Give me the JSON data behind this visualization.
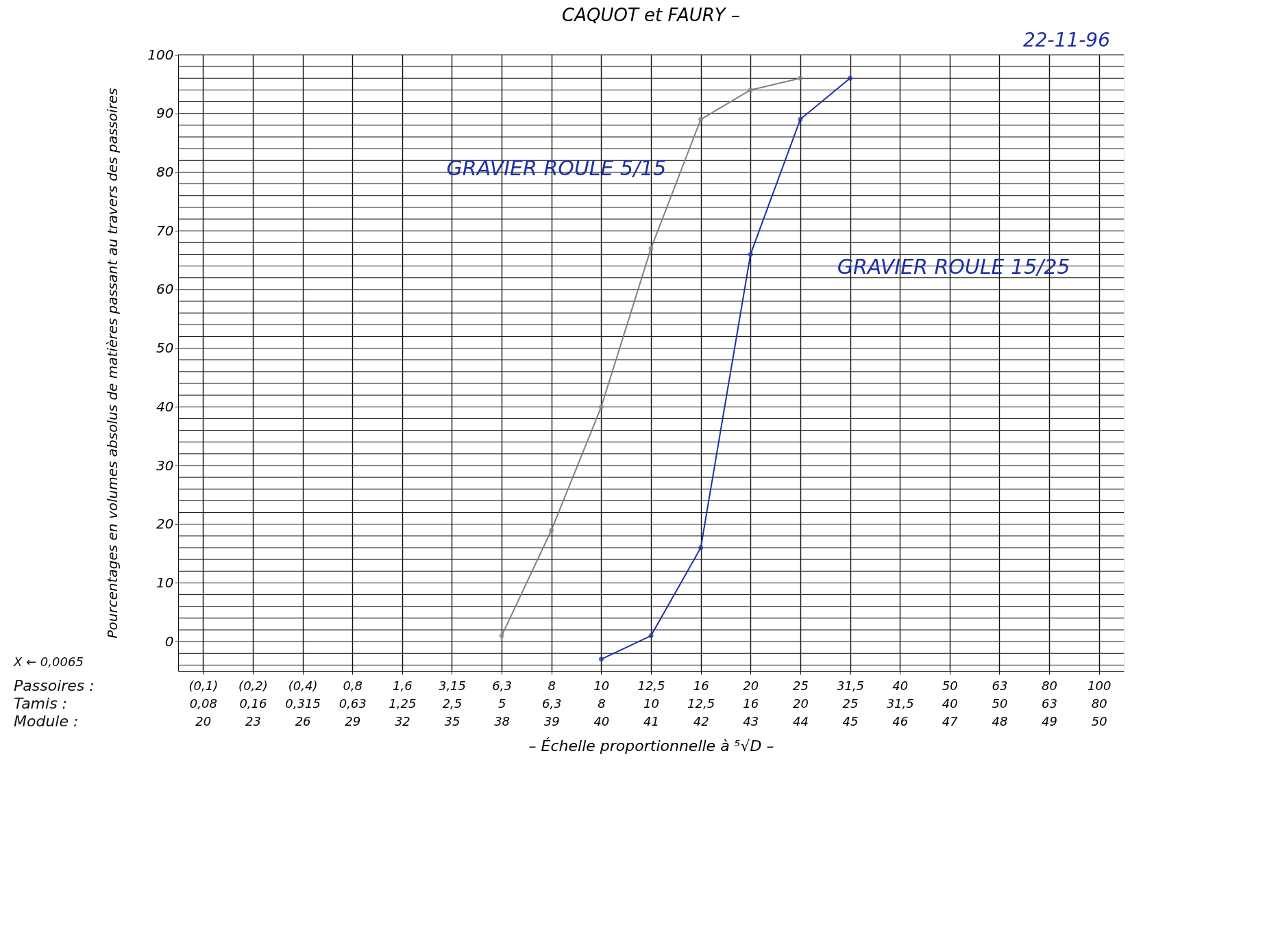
{
  "chart_data": {
    "type": "line",
    "title": "CAQUOT et FAURY –",
    "xlabel": "– Échelle proportionnelle à ⁵√D –",
    "ylabel": "Pourcentages en volumes absolus de matières passant au travers des passoires",
    "annotations": [
      "GRAVIER ROULE 5/15",
      "GRAVIER ROULE 15/25",
      "22-11-96",
      "Passoires :",
      "Tamis :",
      "Module :",
      "X ← 0,0065"
    ],
    "categories": [
      "(0,1)\n0,08\n20",
      "(0,2)\n0,16\n23",
      "(0,4)\n0,315\n26",
      "0,8\n0,63\n29",
      "1,6\n1,25\n32",
      "3,15\n2,5\n35",
      "6,3\n5\n38",
      "8\n6,3\n39",
      "10\n8\n40",
      "12,5\n10\n41",
      "16\n12,5\n42",
      "20\n16\n43",
      "25\n20\n44",
      "31,5\n25\n45",
      "40\n31,5\n46",
      "50\n40\n47",
      "63\n50\n48",
      "80\n63\n49",
      "100\n80\n50"
    ],
    "series": [
      {
        "color": "#808080",
        "values": [
          null,
          null,
          null,
          null,
          null,
          null,
          1,
          19,
          40,
          67,
          89,
          94,
          96,
          null,
          null,
          null,
          null,
          null,
          null
        ]
      },
      {
        "color": "#1f2fa8",
        "values": [
          null,
          null,
          null,
          null,
          null,
          null,
          null,
          null,
          -3,
          1,
          16,
          66,
          89,
          96,
          null,
          null,
          null,
          null,
          null
        ]
      }
    ],
    "ylim": [
      -5,
      100
    ],
    "yticks": [
      {
        "value": -4,
        "label": null
      },
      {
        "value": -2,
        "label": null
      },
      0,
      {
        "value": 2,
        "label": null
      },
      {
        "value": 4,
        "label": null
      },
      {
        "value": 6,
        "label": null
      },
      {
        "value": 8,
        "label": null
      },
      10,
      {
        "value": 12,
        "label": null
      },
      {
        "value": 14,
        "label": null
      },
      {
        "value": 16,
        "label": null
      },
      {
        "value": 18,
        "label": null
      },
      20,
      {
        "value": 22,
        "label": null
      },
      {
        "value": 24,
        "label": null
      },
      {
        "value": 26,
        "label": null
      },
      {
        "value": 28,
        "label": null
      },
      30,
      {
        "value": 32,
        "label": null
      },
      {
        "value": 34,
        "label": null
      },
      {
        "value": 36,
        "label": null
      },
      {
        "value": 38,
        "label": null
      },
      40,
      {
        "value": 42,
        "label": null
      },
      {
        "value": 44,
        "label": null
      },
      {
        "value": 46,
        "label": null
      },
      {
        "value": 48,
        "label": null
      },
      50,
      {
        "value": 52,
        "label": null
      },
      {
        "value": 54,
        "label": null
      },
      {
        "value": 56,
        "label": null
      },
      {
        "value": 58,
        "label": null
      },
      60,
      {
        "value": 62,
        "label": null
      },
      {
        "value": 64,
        "label": null
      },
      {
        "value": 66,
        "label": null
      },
      {
        "value": 68,
        "label": null
      },
      70,
      {
        "value": 72,
        "label": null
      },
      {
        "value": 74,
        "label": null
      },
      {
        "value": 76,
        "label": null
      },
      {
        "value": 78,
        "label": null
      },
      80,
      {
        "value": 82,
        "label": null
      },
      {
        "value": 84,
        "label": null
      },
      {
        "value": 86,
        "label": null
      },
      {
        "value": 88,
        "label": null
      },
      90,
      {
        "value": 92,
        "label": null
      },
      {
        "value": 94,
        "label": null
      },
      {
        "value": 96,
        "label": null
      },
      {
        "value": 98,
        "label": null
      },
      100
    ],
    "grid": true,
    "marker": "circle",
    "line_style": "solid"
  }
}
